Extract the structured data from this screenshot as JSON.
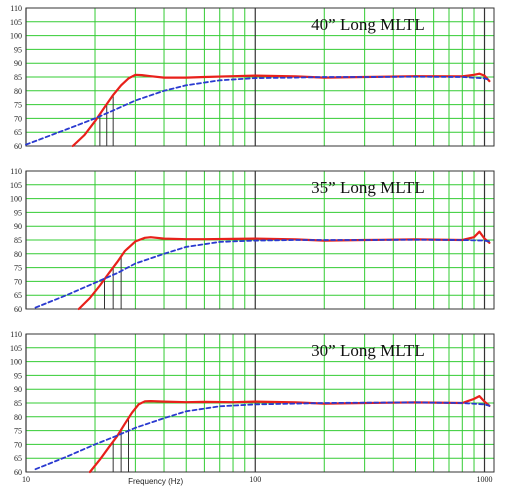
{
  "colors": {
    "background": "#ffffff",
    "grid": "#33cc33",
    "frame": "#333333",
    "anchor_line": "#333333",
    "solid_series": "#e8201a",
    "dashed_series": "#2a3ad0"
  },
  "x_axis": {
    "label": "Frequency (Hz)",
    "tick_labels": [
      "10",
      "100",
      "1000"
    ]
  },
  "chart_data": [
    {
      "type": "line",
      "title": "40” Long MLTL",
      "xlabel": "",
      "ylabel": "",
      "xscale": "log",
      "xlim": [
        10,
        1100
      ],
      "ylim": [
        60,
        110
      ],
      "yticks": [
        60,
        65,
        70,
        75,
        80,
        85,
        90,
        95,
        100,
        105,
        110
      ],
      "grid": true,
      "series": [
        {
          "style": "solid",
          "color": "#e8201a",
          "x": [
            16,
            18,
            20,
            22,
            24,
            26,
            28,
            30,
            32,
            35,
            40,
            50,
            60,
            80,
            100,
            150,
            200,
            300,
            500,
            800,
            900,
            950,
            1000,
            1050
          ],
          "y": [
            60,
            64,
            69,
            74,
            78.5,
            82,
            84.5,
            85.8,
            85.7,
            85.3,
            84.8,
            84.8,
            85,
            85.3,
            85.5,
            85.2,
            84.8,
            85,
            85.3,
            85.2,
            85.8,
            86.2,
            85.5,
            83.5
          ]
        },
        {
          "style": "dashed",
          "color": "#2a3ad0",
          "x": [
            10,
            15,
            20,
            25,
            30,
            40,
            50,
            70,
            100,
            150,
            200,
            300,
            500,
            800,
            1000,
            1050
          ],
          "y": [
            60.5,
            66,
            70,
            73.5,
            76.5,
            80,
            82,
            83.8,
            84.6,
            84.8,
            85,
            85,
            85.1,
            85,
            84.5,
            84
          ]
        }
      ],
      "markers_x": [
        21,
        22.5,
        24
      ]
    },
    {
      "type": "line",
      "title": "35” Long MLTL",
      "xlabel": "",
      "ylabel": "",
      "xscale": "log",
      "xlim": [
        10,
        1100
      ],
      "ylim": [
        60,
        110
      ],
      "yticks": [
        60,
        65,
        70,
        75,
        80,
        85,
        90,
        95,
        100,
        105,
        110
      ],
      "grid": true,
      "series": [
        {
          "style": "solid",
          "color": "#e8201a",
          "x": [
            17,
            19,
            21,
            23,
            25,
            27,
            30,
            33,
            35,
            40,
            50,
            60,
            80,
            100,
            150,
            200,
            300,
            500,
            800,
            900,
            950,
            1000,
            1050
          ],
          "y": [
            60,
            64,
            68.5,
            73,
            77,
            81,
            84.5,
            85.8,
            86,
            85.5,
            85.3,
            85.3,
            85.4,
            85.5,
            85.2,
            84.8,
            85,
            85.2,
            85,
            86,
            88,
            85.5,
            84
          ]
        },
        {
          "style": "dashed",
          "color": "#2a3ad0",
          "x": [
            11,
            15,
            20,
            25,
            30,
            40,
            50,
            70,
            100,
            150,
            200,
            300,
            500,
            800,
            1000,
            1050
          ],
          "y": [
            60.5,
            65,
            69.5,
            73,
            76.5,
            80,
            82.5,
            84.3,
            84.8,
            85,
            85,
            85,
            85.1,
            85,
            84.8,
            84.5
          ]
        }
      ],
      "markers_x": [
        22,
        24,
        26
      ]
    },
    {
      "type": "line",
      "title": "30” Long MLTL",
      "xlabel": "",
      "ylabel": "",
      "xscale": "log",
      "xlim": [
        10,
        1100
      ],
      "ylim": [
        60,
        110
      ],
      "yticks": [
        60,
        65,
        70,
        75,
        80,
        85,
        90,
        95,
        100,
        105,
        110
      ],
      "grid": true,
      "series": [
        {
          "style": "solid",
          "color": "#e8201a",
          "x": [
            19,
            21,
            23,
            25,
            27,
            29,
            31,
            33,
            35,
            40,
            50,
            60,
            80,
            100,
            150,
            200,
            300,
            500,
            800,
            900,
            950,
            1000,
            1050
          ],
          "y": [
            60,
            64.5,
            69,
            73,
            77.5,
            81.5,
            84.5,
            85.6,
            85.7,
            85.5,
            85.3,
            85.4,
            85.3,
            85.5,
            85.2,
            84.8,
            85,
            85.2,
            85,
            86.5,
            87.5,
            85.5,
            84
          ]
        },
        {
          "style": "dashed",
          "color": "#2a3ad0",
          "x": [
            11,
            15,
            20,
            25,
            30,
            40,
            50,
            70,
            100,
            150,
            200,
            300,
            500,
            800,
            1000,
            1050
          ],
          "y": [
            61,
            65.5,
            70,
            73.2,
            76,
            79.5,
            82,
            83.8,
            84.5,
            84.8,
            85,
            85.1,
            85.2,
            85,
            84.5,
            84
          ]
        }
      ],
      "markers_x": [
        24,
        26,
        28
      ]
    }
  ]
}
